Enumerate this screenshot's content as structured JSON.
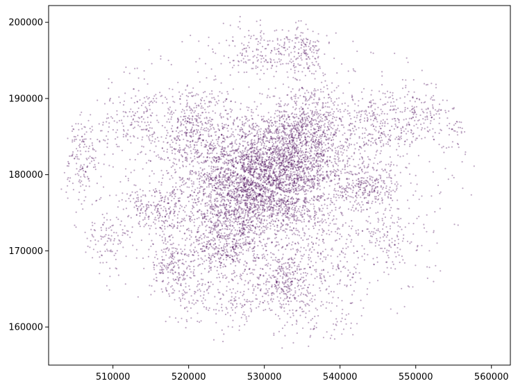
{
  "chart_data": {
    "type": "scatter",
    "title": "",
    "xlabel": "",
    "ylabel": "",
    "xlim": [
      501500,
      562500
    ],
    "ylim": [
      155000,
      202200
    ],
    "grid": false,
    "legend": "none",
    "color": "#440154",
    "marker_alpha": 0.35,
    "x_ticks": [
      {
        "value": 510000,
        "label": "510000"
      },
      {
        "value": 520000,
        "label": "520000"
      },
      {
        "value": 530000,
        "label": "530000"
      },
      {
        "value": 540000,
        "label": "540000"
      },
      {
        "value": 550000,
        "label": "550000"
      },
      {
        "value": 560000,
        "label": "560000"
      }
    ],
    "y_ticks": [
      {
        "value": 160000,
        "label": "160000"
      },
      {
        "value": 170000,
        "label": "170000"
      },
      {
        "value": 180000,
        "label": "180000"
      },
      {
        "value": 190000,
        "label": "190000"
      },
      {
        "value": 200000,
        "label": "200000"
      }
    ],
    "clusters": [
      {
        "cx": 531000,
        "cy": 181000,
        "sx": 5200,
        "sy": 3600,
        "n": 2600
      },
      {
        "cx": 528500,
        "cy": 176500,
        "sx": 4500,
        "sy": 3200,
        "n": 1400
      },
      {
        "cx": 536000,
        "cy": 186500,
        "sx": 2600,
        "sy": 2600,
        "n": 500
      },
      {
        "cx": 524500,
        "cy": 171000,
        "sx": 2500,
        "sy": 2600,
        "n": 450
      },
      {
        "cx": 532500,
        "cy": 166000,
        "sx": 1800,
        "sy": 2000,
        "n": 300
      },
      {
        "cx": 520500,
        "cy": 186000,
        "sx": 2500,
        "sy": 3000,
        "n": 400
      },
      {
        "cx": 543500,
        "cy": 178500,
        "sx": 2200,
        "sy": 1600,
        "n": 280
      },
      {
        "cx": 545500,
        "cy": 186500,
        "sx": 2600,
        "sy": 2500,
        "n": 260
      },
      {
        "cx": 518000,
        "cy": 168000,
        "sx": 1500,
        "sy": 2000,
        "n": 200
      },
      {
        "cx": 515500,
        "cy": 175500,
        "sx": 2200,
        "sy": 1600,
        "n": 220
      },
      {
        "cx": 506000,
        "cy": 182000,
        "sx": 1200,
        "sy": 2800,
        "n": 160
      },
      {
        "cx": 513000,
        "cy": 187000,
        "sx": 2200,
        "sy": 2200,
        "n": 160
      },
      {
        "cx": 551000,
        "cy": 188000,
        "sx": 2000,
        "sy": 2000,
        "n": 140
      },
      {
        "cx": 530500,
        "cy": 196000,
        "sx": 3200,
        "sy": 1600,
        "n": 180
      },
      {
        "cx": 535500,
        "cy": 196500,
        "sx": 1400,
        "sy": 1800,
        "n": 120
      },
      {
        "cx": 547000,
        "cy": 171500,
        "sx": 2200,
        "sy": 2200,
        "n": 130
      },
      {
        "cx": 538500,
        "cy": 168000,
        "sx": 2800,
        "sy": 3000,
        "n": 200
      },
      {
        "cx": 526500,
        "cy": 163500,
        "sx": 2000,
        "sy": 1800,
        "n": 110
      },
      {
        "cx": 509500,
        "cy": 171500,
        "sx": 1600,
        "sy": 1600,
        "n": 90
      },
      {
        "cx": 536000,
        "cy": 160500,
        "sx": 2600,
        "sy": 2000,
        "n": 60
      },
      {
        "cx": 520500,
        "cy": 163500,
        "sx": 1600,
        "sy": 1500,
        "n": 60
      },
      {
        "cx": 555500,
        "cy": 186000,
        "sx": 1800,
        "sy": 1800,
        "n": 40
      },
      {
        "cx": 541500,
        "cy": 158500,
        "sx": 1800,
        "sy": 1200,
        "n": 20
      },
      {
        "cx": 531000,
        "cy": 180000,
        "sx": 15000,
        "sy": 11000,
        "n": 900
      }
    ]
  }
}
